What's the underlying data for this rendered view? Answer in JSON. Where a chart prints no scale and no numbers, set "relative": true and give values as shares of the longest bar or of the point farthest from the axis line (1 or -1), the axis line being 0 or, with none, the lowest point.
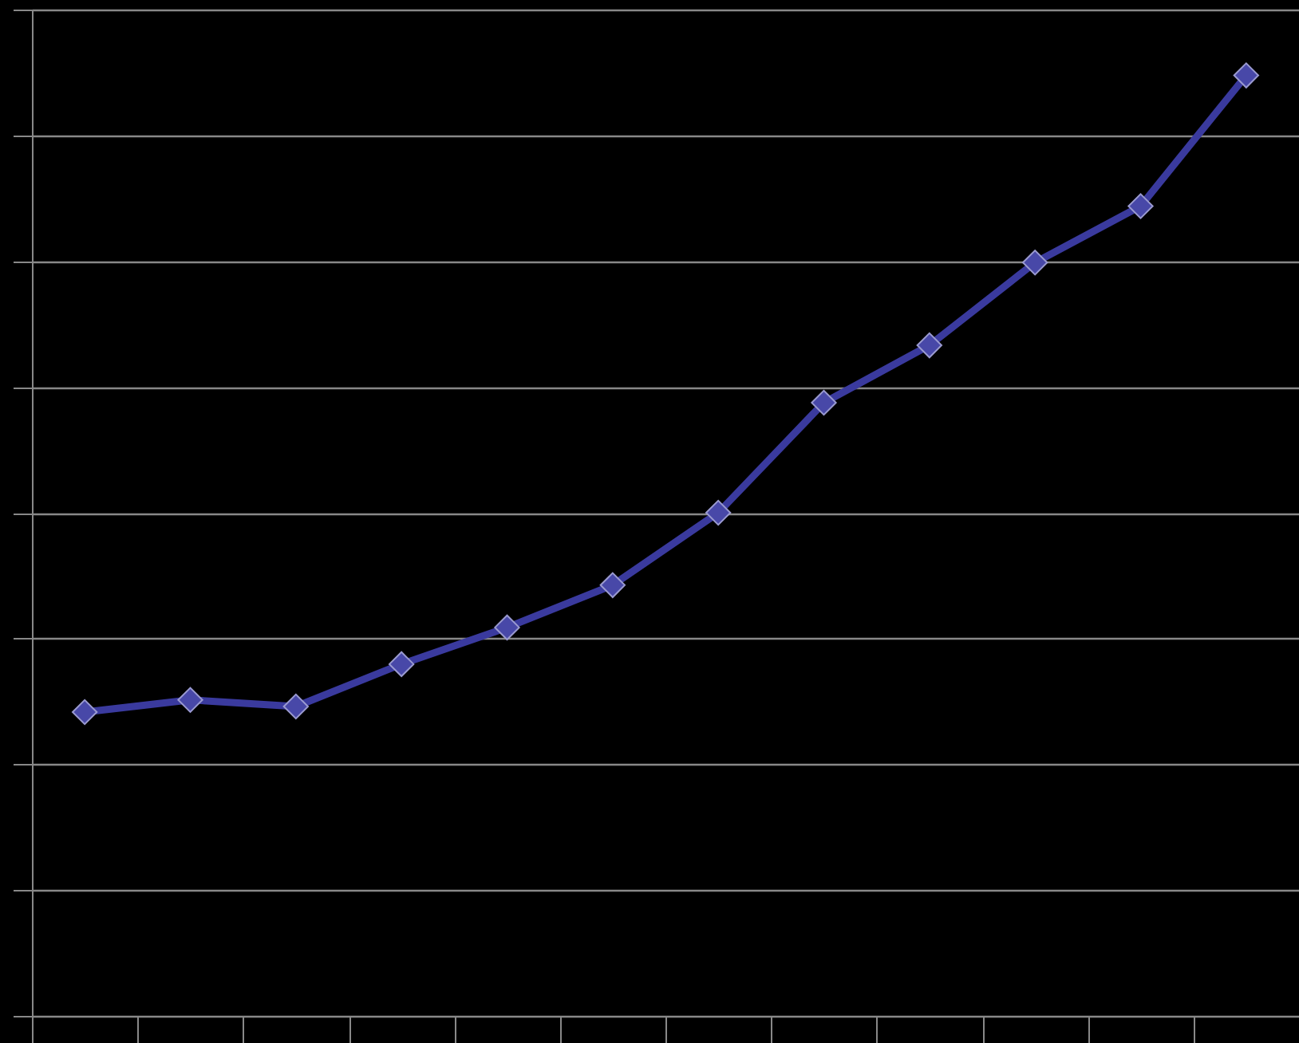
{
  "chart_data": {
    "type": "line",
    "relative": true,
    "categories": [
      null,
      null,
      null,
      null,
      null,
      null,
      null,
      null,
      null,
      null,
      null,
      null
    ],
    "series": [
      {
        "color": "#3a3a9e",
        "values": [
          0.323,
          0.336,
          0.329,
          0.374,
          0.413,
          0.458,
          0.535,
          0.652,
          0.713,
          0.801,
          0.861,
          1
        ]
      }
    ],
    "marker": "diamond",
    "line_style": "solid",
    "grid": "y"
  }
}
